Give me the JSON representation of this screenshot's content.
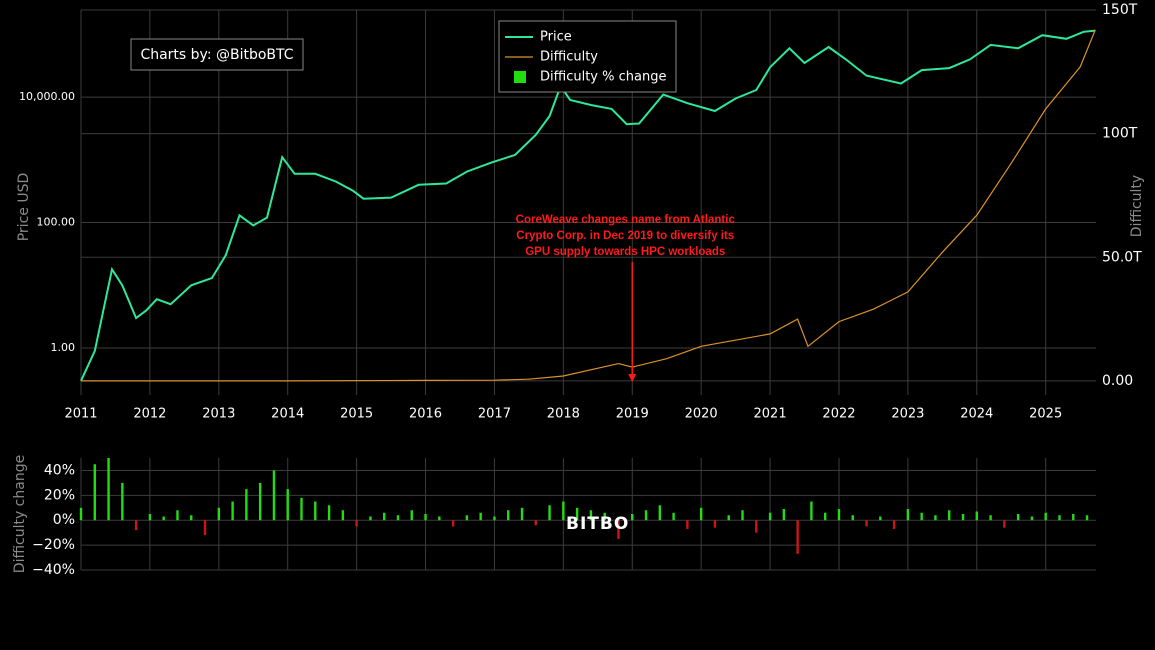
{
  "chart_data": [
    {
      "type": "line",
      "credit": "Charts by: @BitboBTC",
      "watermark": "BITBO",
      "annotation": {
        "text": [
          "CoreWeave changes name from Atlantic",
          "Crypto Corp. in Dec 2019 to diversify its",
          "GPU supply towards HPC workloads"
        ],
        "x": 2019,
        "color": "#ff1a1a"
      },
      "y_label": "Price USD",
      "y2_label": "Difficulty",
      "log_y": true,
      "grid": true,
      "xlim": [
        2011,
        2025.73
      ],
      "xticks": [
        2011,
        2012,
        2013,
        2014,
        2015,
        2016,
        2017,
        2018,
        2019,
        2020,
        2021,
        2022,
        2023,
        2024,
        2025
      ],
      "ylim": [
        0.178,
        245000
      ],
      "yticks": [
        {
          "value": 1,
          "label": "1.00"
        },
        {
          "value": 100,
          "label": "100.00"
        },
        {
          "value": 10000,
          "label": "10,000.00"
        }
      ],
      "y2lim": [
        -5.7,
        150
      ],
      "y2ticks": [
        {
          "value": 0,
          "label": "0.00"
        },
        {
          "value": 50,
          "label": "50.0T"
        },
        {
          "value": 100,
          "label": "100T"
        },
        {
          "value": 150,
          "label": "150T"
        }
      ],
      "series": [
        {
          "name": "Price",
          "color": "#2ee89a",
          "x": [
            2011.0,
            2011.2,
            2011.45,
            2011.6,
            2011.8,
            2011.95,
            2012.1,
            2012.3,
            2012.6,
            2012.9,
            2013.1,
            2013.3,
            2013.5,
            2013.7,
            2013.92,
            2014.1,
            2014.4,
            2014.7,
            2014.95,
            2015.1,
            2015.5,
            2015.9,
            2016.3,
            2016.6,
            2016.95,
            2017.3,
            2017.6,
            2017.8,
            2017.96,
            2018.1,
            2018.4,
            2018.7,
            2018.92,
            2019.1,
            2019.45,
            2019.8,
            2020.2,
            2020.5,
            2020.8,
            2021.0,
            2021.28,
            2021.5,
            2021.85,
            2022.1,
            2022.4,
            2022.9,
            2023.2,
            2023.6,
            2023.9,
            2024.2,
            2024.6,
            2024.95,
            2025.3,
            2025.55,
            2025.72
          ],
          "values": [
            0.3,
            0.9,
            18,
            10,
            3,
            4,
            6,
            5,
            10,
            13,
            30,
            130,
            90,
            120,
            1100,
            600,
            600,
            450,
            320,
            240,
            250,
            400,
            420,
            650,
            900,
            1200,
            2500,
            5000,
            15000,
            9000,
            7500,
            6500,
            3700,
            3800,
            11000,
            8000,
            6000,
            9500,
            13000,
            30000,
            60000,
            35000,
            63000,
            40000,
            22000,
            16500,
            27000,
            29000,
            40000,
            68000,
            60000,
            97000,
            85000,
            110000,
            115000
          ]
        },
        {
          "name": "Difficulty",
          "color": "#d9932c",
          "axis": "y2",
          "x": [
            2011.0,
            2014.0,
            2016.0,
            2017.0,
            2017.5,
            2018.0,
            2018.8,
            2019.0,
            2019.5,
            2020.0,
            2021.0,
            2021.4,
            2021.55,
            2022.0,
            2022.5,
            2023.0,
            2023.5,
            2024.0,
            2024.5,
            2025.0,
            2025.5,
            2025.72
          ],
          "values": [
            0,
            0.01,
            0.2,
            0.3,
            0.7,
            2,
            7,
            5.6,
            9,
            14,
            19,
            25,
            14,
            24,
            29,
            36,
            52,
            67,
            88,
            110,
            127,
            142
          ]
        }
      ]
    },
    {
      "type": "bar",
      "y_label": "Difficulty change",
      "grid": true,
      "xlim": [
        2011,
        2025.73
      ],
      "ylim": [
        -40,
        50
      ],
      "yticks": [
        {
          "value": 40,
          "label": "40%"
        },
        {
          "value": 20,
          "label": "20%"
        },
        {
          "value": 0,
          "label": "0%"
        },
        {
          "value": -20,
          "label": "−20%"
        },
        {
          "value": -40,
          "label": "−40%"
        }
      ],
      "series": [
        {
          "name": "Difficulty % change",
          "color": "#22dd11",
          "negative_color": "#cc1515",
          "x": [
            2011.0,
            2011.2,
            2011.4,
            2011.6,
            2011.8,
            2012.0,
            2012.2,
            2012.4,
            2012.6,
            2012.8,
            2013.0,
            2013.2,
            2013.4,
            2013.6,
            2013.8,
            2014.0,
            2014.2,
            2014.4,
            2014.6,
            2014.8,
            2015.0,
            2015.2,
            2015.4,
            2015.6,
            2015.8,
            2016.0,
            2016.2,
            2016.4,
            2016.6,
            2016.8,
            2017.0,
            2017.2,
            2017.4,
            2017.6,
            2017.8,
            2018.0,
            2018.2,
            2018.4,
            2018.6,
            2018.8,
            2019.0,
            2019.2,
            2019.4,
            2019.6,
            2019.8,
            2020.0,
            2020.2,
            2020.4,
            2020.6,
            2020.8,
            2021.0,
            2021.2,
            2021.4,
            2021.6,
            2021.8,
            2022.0,
            2022.2,
            2022.4,
            2022.6,
            2022.8,
            2023.0,
            2023.2,
            2023.4,
            2023.6,
            2023.8,
            2024.0,
            2024.2,
            2024.4,
            2024.6,
            2024.8,
            2025.0,
            2025.2,
            2025.4,
            2025.6
          ],
          "values": [
            10,
            45,
            50,
            30,
            -8,
            5,
            3,
            8,
            4,
            -12,
            10,
            15,
            25,
            30,
            40,
            25,
            18,
            15,
            12,
            8,
            -5,
            3,
            6,
            4,
            8,
            5,
            3,
            -5,
            4,
            6,
            3,
            8,
            10,
            -4,
            12,
            15,
            10,
            8,
            6,
            -15,
            5,
            8,
            12,
            6,
            -7,
            10,
            -6,
            4,
            8,
            -10,
            6,
            9,
            -27,
            15,
            6,
            9,
            4,
            -5,
            3,
            -7,
            9,
            6,
            4,
            8,
            5,
            7,
            4,
            -6,
            5,
            3,
            6,
            4,
            5,
            4
          ]
        }
      ]
    }
  ]
}
